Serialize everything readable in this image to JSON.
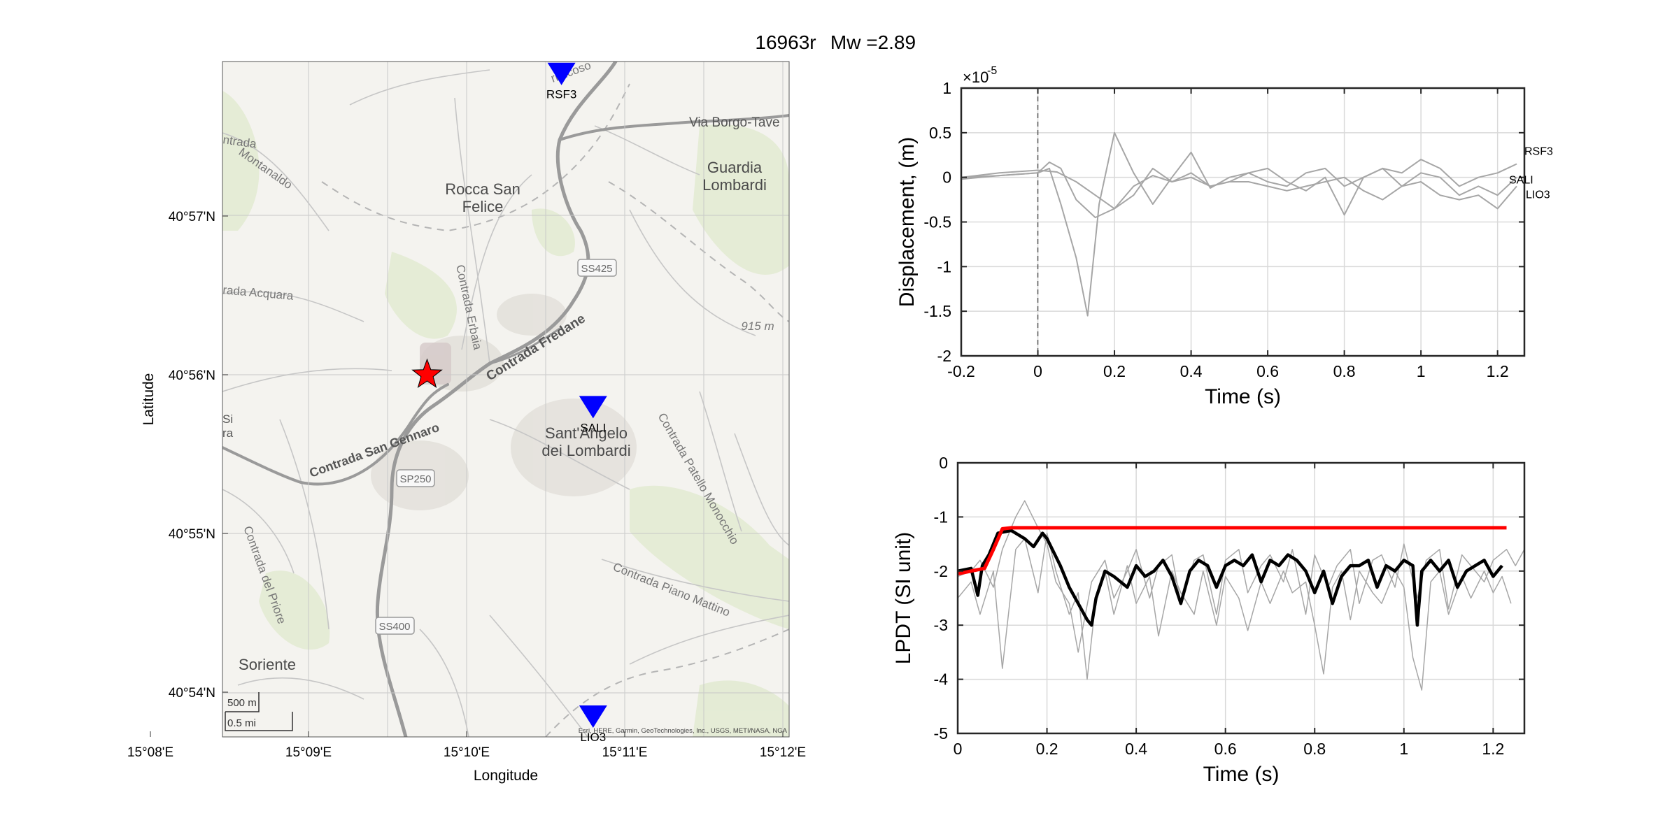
{
  "figure": {
    "title_id": "16963r",
    "title_mag": "Mw =2.89"
  },
  "map": {
    "xlabel": "Longitude",
    "ylabel": "Latitude",
    "xticks": [
      "15°08'E",
      "15°09'E",
      "15°10'E",
      "15°11'E",
      "15°12'E"
    ],
    "yticks": [
      "40°57'N",
      "40°56'N",
      "40°55'N",
      "40°54'N"
    ],
    "attribution": "Esri, HERE, Garmin, GeoTechnologies, Inc., USGS, METI/NASA, NGA",
    "scale_m": "500 m",
    "scale_mi": "0.5 mi",
    "labels": {
      "rocca1": "Rocca San",
      "rocca2": "Felice",
      "guardia1": "Guardia",
      "guardia2": "Lombardi",
      "santangelo1": "Sant'Angelo",
      "santangelo2": "dei Lombardi",
      "soriente": "Soriente",
      "elev": "915 m",
      "ss425": "SS425",
      "sp250": "SP250",
      "ss400": "SS400",
      "road_borgo": "Via Borgo-Tave",
      "road_fredane": "Contrada Fredane",
      "road_sangennaro": "Contrada San Gennaro",
      "road_erbaia": "Contrada Erbaia",
      "road_acquara": "rada Acquara",
      "road_priore": "Contrada del Priore",
      "road_pianomattino": "Contrada Piano Mattino",
      "road_patellomonocchio": "Contrada Patello Monocchio",
      "road_montanaldo": "Montanaldo",
      "road_trada": "ntrada",
      "road_micoso": "rmicoso",
      "edge_si": "Si",
      "edge_ra": "ra"
    },
    "stations": [
      {
        "name": "RSF3",
        "lon_min": 10.6,
        "lat_min": 57.9
      },
      {
        "name": "SALI",
        "lon_min": 10.8,
        "lat_min": 55.8
      },
      {
        "name": "LIO3",
        "lon_min": 10.8,
        "lat_min": 53.85
      }
    ],
    "epicenter": {
      "lon_min": 9.75,
      "lat_min": 56.0
    },
    "colors": {
      "station": "#0000ff",
      "epicenter": "#ff0000"
    }
  },
  "chart_data": [
    {
      "type": "line",
      "xlabel": "Time (s)",
      "ylabel": "Displacement, (m)",
      "exponent_base": "×10",
      "exponent_power": "-5",
      "xlim": [
        -0.2,
        1.27
      ],
      "ylim": [
        -2,
        1
      ],
      "xticks": [
        -0.2,
        0,
        0.2,
        0.4,
        0.6,
        0.8,
        1,
        1.2
      ],
      "xtick_labels": [
        "-0.2",
        "0",
        "0.2",
        "0.4",
        "0.6",
        "0.8",
        "1",
        "1.2"
      ],
      "yticks": [
        -2,
        -1.5,
        -1,
        -0.5,
        0,
        0.5,
        1
      ],
      "ytick_labels": [
        "-2",
        "-1.5",
        "-1",
        "-0.5",
        "0",
        "0.5",
        "1"
      ],
      "grid": true,
      "vline_x": 0,
      "series": [
        {
          "name": "RSF3",
          "color": "#a6a6a6",
          "x": [
            -0.2,
            -0.1,
            0,
            0.03,
            0.06,
            0.1,
            0.13,
            0.16,
            0.2,
            0.25,
            0.3,
            0.35,
            0.4,
            0.45,
            0.5,
            0.55,
            0.6,
            0.65,
            0.7,
            0.75,
            0.8,
            0.85,
            0.9,
            0.95,
            1.0,
            1.05,
            1.1,
            1.15,
            1.2,
            1.25
          ],
          "y": [
            -0.02,
            0.02,
            0.05,
            0.1,
            -0.3,
            -0.9,
            -1.55,
            -0.3,
            0.5,
            0.05,
            -0.3,
            0.0,
            0.28,
            -0.12,
            0.0,
            0.05,
            -0.05,
            -0.1,
            0.05,
            0.1,
            -0.1,
            0.0,
            0.1,
            0.05,
            0.2,
            0.1,
            -0.1,
            0.0,
            0.05,
            0.15
          ]
        },
        {
          "name": "SALI",
          "color": "#a6a6a6",
          "x": [
            -0.2,
            -0.1,
            0,
            0.03,
            0.06,
            0.1,
            0.15,
            0.2,
            0.25,
            0.3,
            0.35,
            0.4,
            0.45,
            0.5,
            0.55,
            0.6,
            0.65,
            0.7,
            0.75,
            0.8,
            0.85,
            0.9,
            0.95,
            1.0,
            1.05,
            1.1,
            1.15,
            1.2,
            1.25
          ],
          "y": [
            0.0,
            0.02,
            0.05,
            0.17,
            0.1,
            -0.25,
            -0.45,
            -0.35,
            -0.1,
            0.02,
            -0.05,
            0.05,
            -0.1,
            -0.05,
            0.05,
            0.1,
            -0.05,
            -0.15,
            0.0,
            -0.42,
            0.0,
            0.1,
            -0.1,
            0.05,
            0.0,
            -0.2,
            -0.1,
            -0.2,
            0.0
          ]
        },
        {
          "name": "LIO3",
          "color": "#a6a6a6",
          "x": [
            -0.2,
            -0.1,
            0,
            0.05,
            0.1,
            0.15,
            0.2,
            0.25,
            0.3,
            0.35,
            0.4,
            0.45,
            0.5,
            0.55,
            0.6,
            0.65,
            0.7,
            0.75,
            0.8,
            0.85,
            0.9,
            0.95,
            1.0,
            1.05,
            1.1,
            1.15,
            1.2,
            1.25
          ],
          "y": [
            0.0,
            0.05,
            0.08,
            0.06,
            -0.05,
            -0.2,
            -0.35,
            -0.2,
            0.1,
            -0.05,
            0.0,
            -0.1,
            -0.05,
            -0.05,
            -0.1,
            -0.15,
            -0.1,
            -0.05,
            0.0,
            -0.15,
            -0.25,
            -0.1,
            -0.05,
            -0.2,
            -0.25,
            -0.2,
            -0.35,
            -0.1
          ]
        }
      ],
      "labels": [
        "RSF3",
        "SALI",
        "LIO3"
      ]
    },
    {
      "type": "line",
      "xlabel": "Time (s)",
      "ylabel": "LPDT (SI unit)",
      "xlim": [
        0,
        1.27
      ],
      "ylim": [
        -5,
        0
      ],
      "xticks": [
        0,
        0.2,
        0.4,
        0.6,
        0.8,
        1,
        1.2
      ],
      "xtick_labels": [
        "0",
        "0.2",
        "0.4",
        "0.6",
        "0.8",
        "1",
        "1.2"
      ],
      "yticks": [
        -5,
        -4,
        -3,
        -2,
        -1,
        0
      ],
      "ytick_labels": [
        "-5",
        "-4",
        "-3",
        "-2",
        "-1",
        "0"
      ],
      "grid": true,
      "series": [
        {
          "color": "#a6a6a6",
          "width": 1.5,
          "x": [
            0,
            0.03,
            0.05,
            0.08,
            0.1,
            0.13,
            0.15,
            0.18,
            0.2,
            0.22,
            0.25,
            0.27,
            0.3,
            0.33,
            0.35,
            0.38,
            0.4,
            0.43,
            0.45,
            0.48,
            0.5,
            0.53,
            0.55,
            0.58,
            0.6,
            0.63,
            0.65,
            0.68,
            0.7,
            0.73,
            0.75,
            0.78,
            0.8,
            0.83,
            0.85,
            0.88,
            0.9,
            0.93,
            0.95,
            0.98,
            1.0,
            1.03,
            1.05,
            1.08,
            1.1,
            1.13,
            1.15,
            1.18,
            1.2,
            1.23,
            1.25,
            1.27
          ],
          "y": [
            -2.1,
            -2.0,
            -1.8,
            -2.3,
            -1.6,
            -1.0,
            -0.7,
            -1.2,
            -1.5,
            -2.2,
            -2.6,
            -3.5,
            -2.2,
            -1.8,
            -2.5,
            -2.0,
            -1.6,
            -2.5,
            -1.9,
            -1.7,
            -2.6,
            -1.8,
            -1.7,
            -2.8,
            -1.8,
            -1.6,
            -2.4,
            -1.9,
            -1.7,
            -2.2,
            -1.6,
            -2.8,
            -1.7,
            -2.3,
            -1.9,
            -1.6,
            -2.6,
            -1.8,
            -1.7,
            -2.3,
            -1.5,
            -2.5,
            -1.8,
            -1.6,
            -2.7,
            -1.7,
            -1.9,
            -2.2,
            -1.8,
            -1.6,
            -1.9,
            -1.6
          ]
        },
        {
          "color": "#a6a6a6",
          "width": 1.5,
          "x": [
            0,
            0.03,
            0.05,
            0.08,
            0.1,
            0.13,
            0.15,
            0.18,
            0.2,
            0.22,
            0.25,
            0.27,
            0.29,
            0.31,
            0.33,
            0.35,
            0.38,
            0.4,
            0.43,
            0.45,
            0.48,
            0.5,
            0.53,
            0.55,
            0.58,
            0.6,
            0.63,
            0.65,
            0.68,
            0.7,
            0.73,
            0.75,
            0.78,
            0.8,
            0.82,
            0.84,
            0.86,
            0.88,
            0.9,
            0.93,
            0.95,
            0.98,
            1.0,
            1.02,
            1.04,
            1.06,
            1.08,
            1.1,
            1.13,
            1.15,
            1.18,
            1.2,
            1.22,
            1.24
          ],
          "y": [
            -2.5,
            -2.2,
            -2.8,
            -2.0,
            -3.8,
            -1.6,
            -1.4,
            -2.4,
            -1.3,
            -2.0,
            -2.8,
            -2.4,
            -4.0,
            -2.5,
            -2.0,
            -2.8,
            -1.9,
            -2.6,
            -2.1,
            -3.2,
            -2.0,
            -2.4,
            -2.8,
            -2.0,
            -3.0,
            -2.1,
            -2.5,
            -3.1,
            -2.2,
            -2.6,
            -2.0,
            -2.4,
            -2.2,
            -3.0,
            -3.9,
            -2.3,
            -2.0,
            -2.9,
            -2.0,
            -2.4,
            -2.6,
            -2.0,
            -2.3,
            -3.6,
            -4.2,
            -2.2,
            -2.0,
            -2.8,
            -2.1,
            -2.5,
            -2.0,
            -2.4,
            -2.1,
            -2.6
          ]
        },
        {
          "color": "#000000",
          "width": 4.5,
          "x": [
            0,
            0.03,
            0.045,
            0.055,
            0.07,
            0.09,
            0.12,
            0.15,
            0.17,
            0.19,
            0.2,
            0.23,
            0.25,
            0.27,
            0.29,
            0.3,
            0.31,
            0.33,
            0.35,
            0.38,
            0.4,
            0.42,
            0.44,
            0.46,
            0.48,
            0.5,
            0.52,
            0.54,
            0.56,
            0.58,
            0.6,
            0.62,
            0.64,
            0.66,
            0.68,
            0.7,
            0.72,
            0.74,
            0.76,
            0.78,
            0.8,
            0.82,
            0.84,
            0.86,
            0.88,
            0.9,
            0.92,
            0.94,
            0.96,
            0.98,
            1.0,
            1.02,
            1.03,
            1.04,
            1.06,
            1.08,
            1.1,
            1.12,
            1.14,
            1.16,
            1.18,
            1.2,
            1.22
          ],
          "y": [
            -2.0,
            -1.95,
            -2.45,
            -1.9,
            -1.7,
            -1.3,
            -1.25,
            -1.4,
            -1.55,
            -1.3,
            -1.4,
            -1.9,
            -2.3,
            -2.6,
            -2.9,
            -3.0,
            -2.5,
            -2.0,
            -2.1,
            -2.3,
            -1.9,
            -2.1,
            -2.0,
            -1.8,
            -2.1,
            -2.6,
            -2.0,
            -1.8,
            -1.9,
            -2.3,
            -1.9,
            -1.8,
            -1.9,
            -1.7,
            -2.2,
            -1.8,
            -1.9,
            -1.7,
            -1.8,
            -2.0,
            -2.4,
            -2.0,
            -2.6,
            -2.1,
            -1.9,
            -1.9,
            -1.8,
            -2.3,
            -1.9,
            -2.0,
            -1.8,
            -1.9,
            -3.0,
            -2.0,
            -1.8,
            -2.0,
            -1.8,
            -2.3,
            -2.0,
            -1.9,
            -1.8,
            -2.1,
            -1.9
          ]
        },
        {
          "color": "#ff0000",
          "width": 5,
          "x": [
            0,
            0.03,
            0.06,
            0.08,
            0.1,
            0.12,
            1.23
          ],
          "y": [
            -2.05,
            -2.0,
            -1.95,
            -1.6,
            -1.22,
            -1.2,
            -1.2
          ]
        }
      ]
    }
  ]
}
